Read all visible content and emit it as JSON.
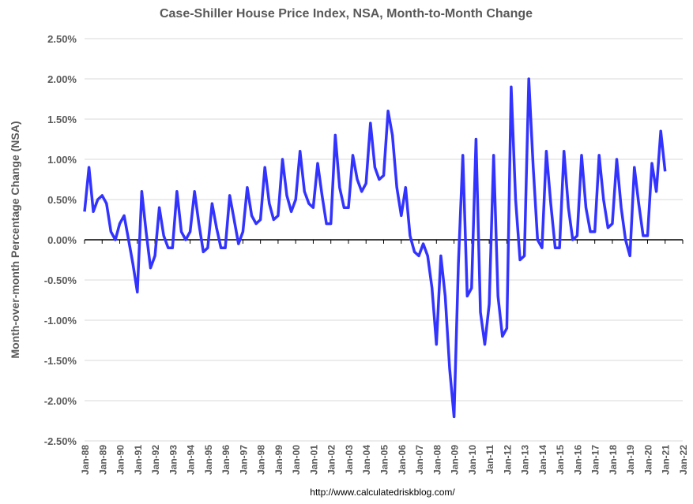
{
  "chart_data": {
    "type": "line",
    "title": "Case-Shiller House Price Index, NSA, Month-to-Month Change",
    "y_label": "Month-over-month Percentage Change (NSA)",
    "source": "http://www.calculatedriskblog.com/",
    "x": [
      1988,
      1988.25,
      1988.5,
      1988.75,
      1989,
      1989.25,
      1989.5,
      1989.75,
      1990,
      1990.25,
      1990.5,
      1990.75,
      1991,
      1991.25,
      1991.5,
      1991.75,
      1992,
      1992.25,
      1992.5,
      1992.75,
      1993,
      1993.25,
      1993.5,
      1993.75,
      1994,
      1994.25,
      1994.5,
      1994.75,
      1995,
      1995.25,
      1995.5,
      1995.75,
      1996,
      1996.25,
      1996.5,
      1996.75,
      1997,
      1997.25,
      1997.5,
      1997.75,
      1998,
      1998.25,
      1998.5,
      1998.75,
      1999,
      1999.25,
      1999.5,
      1999.75,
      2000,
      2000.25,
      2000.5,
      2000.75,
      2001,
      2001.25,
      2001.5,
      2001.75,
      2002,
      2002.25,
      2002.5,
      2002.75,
      2003,
      2003.25,
      2003.5,
      2003.75,
      2004,
      2004.25,
      2004.5,
      2004.75,
      2005,
      2005.25,
      2005.5,
      2005.75,
      2006,
      2006.25,
      2006.5,
      2006.75,
      2007,
      2007.25,
      2007.5,
      2007.75,
      2008,
      2008.25,
      2008.5,
      2008.75,
      2009,
      2009.25,
      2009.5,
      2009.75,
      2010,
      2010.25,
      2010.5,
      2010.75,
      2011,
      2011.25,
      2011.5,
      2011.75,
      2012,
      2012.25,
      2012.5,
      2012.75,
      2013,
      2013.25,
      2013.5,
      2013.75,
      2014,
      2014.25,
      2014.5,
      2014.75,
      2015,
      2015.25,
      2015.5,
      2015.75,
      2016,
      2016.25,
      2016.5,
      2016.75,
      2017,
      2017.25,
      2017.5,
      2017.75,
      2018,
      2018.25,
      2018.5,
      2018.75,
      2019,
      2019.25,
      2019.5,
      2019.75,
      2020,
      2020.25,
      2020.5,
      2020.75,
      2021
    ],
    "series": [
      {
        "color": "#3333ff",
        "values": [
          0.35,
          0.9,
          0.35,
          0.5,
          0.55,
          0.45,
          0.1,
          0.0,
          0.2,
          0.3,
          0.0,
          -0.3,
          -0.65,
          0.6,
          0.1,
          -0.35,
          -0.2,
          0.4,
          0.05,
          -0.1,
          -0.1,
          0.6,
          0.1,
          0.0,
          0.1,
          0.6,
          0.2,
          -0.15,
          -0.1,
          0.45,
          0.15,
          -0.1,
          -0.1,
          0.55,
          0.25,
          -0.05,
          0.1,
          0.65,
          0.3,
          0.2,
          0.25,
          0.9,
          0.45,
          0.25,
          0.3,
          1.0,
          0.55,
          0.35,
          0.5,
          1.1,
          0.6,
          0.45,
          0.4,
          0.95,
          0.55,
          0.2,
          0.2,
          1.3,
          0.65,
          0.4,
          0.4,
          1.05,
          0.75,
          0.6,
          0.7,
          1.45,
          0.9,
          0.75,
          0.8,
          1.6,
          1.3,
          0.65,
          0.3,
          0.65,
          0.05,
          -0.15,
          -0.2,
          -0.05,
          -0.2,
          -0.6,
          -1.3,
          -0.2,
          -0.7,
          -1.6,
          -2.2,
          -0.3,
          1.05,
          -0.7,
          -0.6,
          1.25,
          -0.9,
          -1.3,
          -0.8,
          1.05,
          -0.7,
          -1.2,
          -1.1,
          1.9,
          0.5,
          -0.25,
          -0.2,
          2.0,
          0.9,
          0.0,
          -0.1,
          1.1,
          0.45,
          -0.1,
          -0.1,
          1.1,
          0.4,
          0.0,
          0.05,
          1.05,
          0.4,
          0.1,
          0.1,
          1.05,
          0.5,
          0.15,
          0.2,
          1.0,
          0.4,
          0.0,
          -0.2,
          0.9,
          0.45,
          0.05,
          0.05,
          0.95,
          0.6,
          1.35,
          0.85
        ]
      }
    ],
    "xlim": [
      1988,
      2022
    ],
    "xticks": [
      {
        "value": 1988,
        "label": "Jan-88"
      },
      {
        "value": 1989,
        "label": "Jan-89"
      },
      {
        "value": 1990,
        "label": "Jan-90"
      },
      {
        "value": 1991,
        "label": "Jan-91"
      },
      {
        "value": 1992,
        "label": "Jan-92"
      },
      {
        "value": 1993,
        "label": "Jan-93"
      },
      {
        "value": 1994,
        "label": "Jan-94"
      },
      {
        "value": 1995,
        "label": "Jan-95"
      },
      {
        "value": 1996,
        "label": "Jan-96"
      },
      {
        "value": 1997,
        "label": "Jan-97"
      },
      {
        "value": 1998,
        "label": "Jan-98"
      },
      {
        "value": 1999,
        "label": "Jan-99"
      },
      {
        "value": 2000,
        "label": "Jan-00"
      },
      {
        "value": 2001,
        "label": "Jan-01"
      },
      {
        "value": 2002,
        "label": "Jan-02"
      },
      {
        "value": 2003,
        "label": "Jan-03"
      },
      {
        "value": 2004,
        "label": "Jan-04"
      },
      {
        "value": 2005,
        "label": "Jan-05"
      },
      {
        "value": 2006,
        "label": "Jan-06"
      },
      {
        "value": 2007,
        "label": "Jan-07"
      },
      {
        "value": 2008,
        "label": "Jan-08"
      },
      {
        "value": 2009,
        "label": "Jan-09"
      },
      {
        "value": 2010,
        "label": "Jan-10"
      },
      {
        "value": 2011,
        "label": "Jan-11"
      },
      {
        "value": 2012,
        "label": "Jan-12"
      },
      {
        "value": 2013,
        "label": "Jan-13"
      },
      {
        "value": 2014,
        "label": "Jan-14"
      },
      {
        "value": 2015,
        "label": "Jan-15"
      },
      {
        "value": 2016,
        "label": "Jan-16"
      },
      {
        "value": 2017,
        "label": "Jan-17"
      },
      {
        "value": 2018,
        "label": "Jan-18"
      },
      {
        "value": 2019,
        "label": "Jan-19"
      },
      {
        "value": 2020,
        "label": "Jan-20"
      },
      {
        "value": 2021,
        "label": "Jan-21"
      },
      {
        "value": 2022,
        "label": "Jan-22"
      }
    ],
    "ylim": [
      -2.5,
      2.5
    ],
    "yticks": [
      {
        "value": 2.5,
        "label": "2.50%"
      },
      {
        "value": 2.0,
        "label": "2.00%"
      },
      {
        "value": 1.5,
        "label": "1.50%"
      },
      {
        "value": 1.0,
        "label": "1.00%"
      },
      {
        "value": 0.5,
        "label": "0.50%"
      },
      {
        "value": 0,
        "label": "0.00%"
      },
      {
        "value": -0.5,
        "label": "-0.50%"
      },
      {
        "value": -1.0,
        "label": "-1.00%"
      },
      {
        "value": -1.5,
        "label": "-1.50%"
      },
      {
        "value": -2.0,
        "label": "-2.00%"
      },
      {
        "value": -2.5,
        "label": "-2.50%"
      }
    ],
    "grid": true
  }
}
